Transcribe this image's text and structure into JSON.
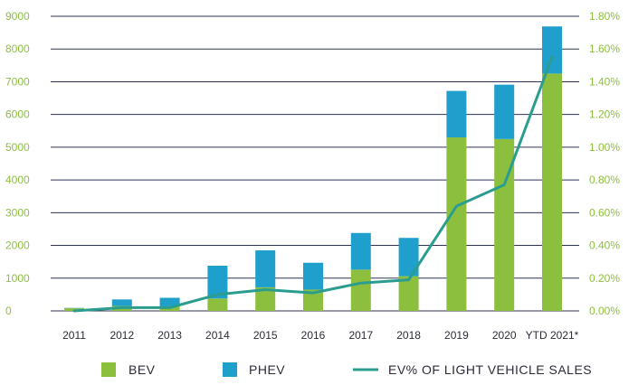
{
  "chart_data": {
    "type": "bar",
    "stacked": true,
    "categories": [
      "2011",
      "2012",
      "2013",
      "2014",
      "2015",
      "2016",
      "2017",
      "2018",
      "2019",
      "2020",
      "YTD 2021*"
    ],
    "series": [
      {
        "name": "BEV",
        "type": "bar",
        "axis": "left",
        "color": "#8dbf3f",
        "values": [
          80,
          150,
          140,
          380,
          720,
          650,
          1260,
          1060,
          5300,
          5250,
          7250
        ]
      },
      {
        "name": "PHEV",
        "type": "bar",
        "axis": "left",
        "color": "#1f9fcc",
        "values": [
          10,
          200,
          260,
          1000,
          1130,
          820,
          1120,
          1170,
          1420,
          1660,
          1440
        ]
      },
      {
        "name": "EV% OF LIGHT VEHICLE SALES",
        "type": "line",
        "axis": "right",
        "color": "#2a9d8f",
        "values": [
          0.0,
          0.02,
          0.02,
          0.1,
          0.13,
          0.11,
          0.17,
          0.19,
          0.64,
          0.77,
          1.55
        ]
      }
    ],
    "y_left": {
      "ylim": [
        0,
        9000
      ],
      "ticks": [
        "0",
        "1000",
        "2000",
        "3000",
        "4000",
        "5000",
        "6000",
        "7000",
        "8000",
        "9000"
      ]
    },
    "y_right": {
      "ylim": [
        0,
        1.8
      ],
      "ticks": [
        "0.00%",
        "0.20%",
        "0.40%",
        "0.60%",
        "0.80%",
        "1.00%",
        "1.20%",
        "1.40%",
        "1.60%",
        "1.80%"
      ]
    },
    "grid": true,
    "legend_position": "bottom",
    "title": "",
    "xlabel": "",
    "ylabel": ""
  },
  "legend": {
    "bev": "BEV",
    "phev": "PHEV",
    "line": "EV% OF LIGHT VEHICLE SALES"
  }
}
